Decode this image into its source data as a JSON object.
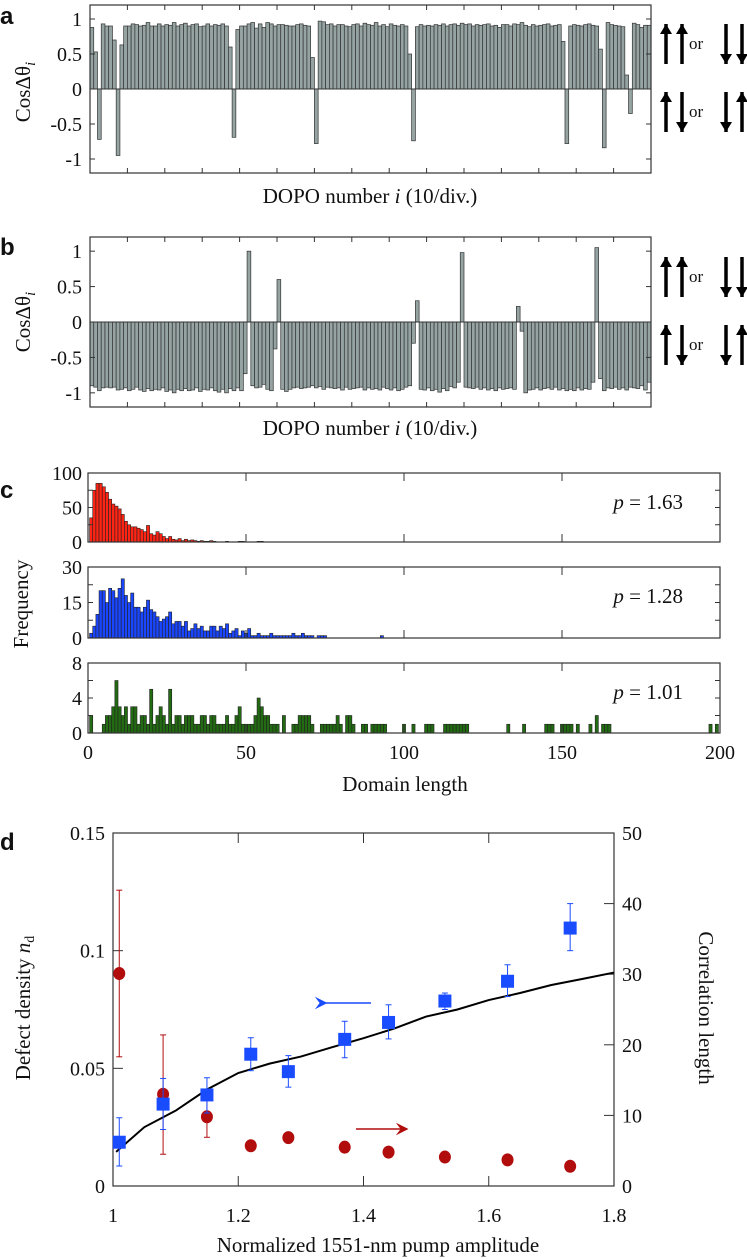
{
  "chart_data": [
    {
      "panel": "a",
      "type": "bar",
      "ylabel": "CosΔθ",
      "ylabel_sub": "i",
      "xlabel_pre": "DOPO number ",
      "xlabel_var": "i",
      "xlabel_post": " (10/div.)",
      "ylim": [
        -1.2,
        1.2
      ],
      "yticks": [
        1,
        0.5,
        0,
        -0.5,
        -1
      ],
      "ytick_labels": [
        "1",
        "0.5",
        "0",
        "-0.5",
        "-1"
      ],
      "side_labels": {
        "upper_or": "or",
        "lower_or": "or"
      },
      "bar_color": "#95a3a3",
      "values": [
        0.88,
        0.53,
        -0.72,
        0.93,
        0.9,
        0.9,
        0.7,
        -0.95,
        0.63,
        0.9,
        0.9,
        0.93,
        0.92,
        0.9,
        0.91,
        0.95,
        0.9,
        0.9,
        0.93,
        0.9,
        0.92,
        0.91,
        0.95,
        0.9,
        0.92,
        0.94,
        0.9,
        0.92,
        0.93,
        0.89,
        0.9,
        0.93,
        0.9,
        0.92,
        0.91,
        0.93,
        0.9,
        0.6,
        -0.69,
        0.85,
        0.9,
        0.9,
        0.93,
        0.95,
        0.87,
        0.93,
        0.88,
        0.95,
        0.93,
        0.9,
        0.92,
        0.92,
        0.91,
        0.9,
        0.9,
        0.92,
        0.93,
        0.91,
        0.9,
        0.45,
        -0.78,
        0.97,
        0.96,
        0.92,
        0.93,
        0.9,
        0.92,
        0.92,
        0.9,
        0.89,
        0.92,
        0.93,
        0.9,
        0.94,
        0.92,
        0.91,
        0.95,
        0.9,
        0.92,
        0.89,
        0.93,
        0.91,
        0.9,
        0.92,
        0.9,
        0.5,
        -0.74,
        0.89,
        0.92,
        0.9,
        0.91,
        0.9,
        0.92,
        0.91,
        0.93,
        0.9,
        0.92,
        0.93,
        0.91,
        0.94,
        0.92,
        0.93,
        0.9,
        0.92,
        0.91,
        0.92,
        0.93,
        0.9,
        0.91,
        0.88,
        0.92,
        0.92,
        0.9,
        0.93,
        0.92,
        0.95,
        0.91,
        0.89,
        0.92,
        0.9,
        0.91,
        0.92,
        0.93,
        0.9,
        0.91,
        0.92,
        0.68,
        -0.78,
        0.9,
        0.92,
        0.91,
        0.9,
        0.92,
        0.93,
        0.91,
        0.9,
        0.57,
        -0.84,
        0.95,
        0.92,
        0.91,
        0.9,
        0.89,
        0.2,
        -0.35,
        0.94,
        0.92,
        0.88,
        0.91,
        0.91
      ]
    },
    {
      "panel": "b",
      "type": "bar",
      "ylabel": "CosΔθ",
      "ylabel_sub": "i",
      "xlabel_pre": "DOPO number ",
      "xlabel_var": "i",
      "xlabel_post": " (10/div.)",
      "ylim": [
        -1.2,
        1.2
      ],
      "yticks": [
        1,
        0.5,
        0,
        -0.5,
        -1
      ],
      "ytick_labels": [
        "1",
        "0.5",
        "0",
        "-0.5",
        "-1"
      ],
      "side_labels": {
        "upper_or": "or",
        "lower_or": "or"
      },
      "bar_color": "#95a3a3",
      "values": [
        -0.9,
        -0.92,
        -0.97,
        -0.93,
        -0.92,
        -0.93,
        -0.92,
        -0.96,
        -0.95,
        -0.93,
        -0.97,
        -0.95,
        -0.92,
        -0.96,
        -0.98,
        -0.94,
        -0.97,
        -0.95,
        -0.96,
        -0.93,
        -0.98,
        -0.96,
        -1.0,
        -0.95,
        -0.97,
        -0.94,
        -0.97,
        -0.96,
        -0.93,
        -0.98,
        -0.95,
        -0.96,
        -0.93,
        -0.97,
        -0.99,
        -0.95,
        -1.0,
        -0.94,
        -0.97,
        -0.93,
        -0.97,
        -0.73,
        1.0,
        -0.9,
        -0.93,
        -0.92,
        -0.88,
        -0.95,
        -0.97,
        -0.38,
        0.6,
        -0.95,
        -0.98,
        -0.95,
        -0.93,
        -0.92,
        -0.94,
        -0.93,
        -0.92,
        -0.9,
        -0.93,
        -0.91,
        -0.95,
        -0.92,
        -0.93,
        -0.94,
        -0.93,
        -0.96,
        -0.92,
        -0.95,
        -0.94,
        -0.93,
        -0.92,
        -0.96,
        -0.93,
        -0.95,
        -0.94,
        -0.96,
        -0.92,
        -0.94,
        -0.96,
        -0.93,
        -0.97,
        -0.95,
        -0.92,
        -0.9,
        -0.3,
        0.3,
        -0.95,
        -0.96,
        -0.93,
        -0.97,
        -0.95,
        -0.99,
        -0.94,
        -0.97,
        -0.91,
        -0.93,
        -0.85,
        0.98,
        -0.92,
        -0.93,
        -0.94,
        -0.92,
        -0.95,
        -0.93,
        -0.96,
        -0.94,
        -0.97,
        -0.93,
        -0.95,
        -0.94,
        -0.93,
        -0.95,
        0.22,
        -0.13,
        -1.0,
        -0.96,
        -0.95,
        -0.93,
        -0.96,
        -0.94,
        -0.93,
        -0.95,
        -0.92,
        -0.96,
        -0.94,
        -0.97,
        -0.95,
        -0.97,
        -0.93,
        -0.96,
        -0.94,
        -0.95,
        -0.85,
        1.05,
        -0.8,
        -0.97,
        -0.93,
        -0.94,
        -0.92,
        -0.95,
        -0.93,
        -0.96,
        -0.92,
        -0.93,
        -0.94,
        -0.9,
        -0.96,
        -0.85
      ]
    },
    {
      "panel": "c",
      "type": "bar",
      "ylabel": "Frequency",
      "xlabel": "Domain length",
      "xlim": [
        0,
        200
      ],
      "xticks": [
        0,
        50,
        100,
        150,
        200
      ],
      "xtick_labels": [
        "0",
        "50",
        "100",
        "150",
        "200"
      ],
      "histograms": [
        {
          "label_var": "p",
          "label_rest": " = 1.63",
          "color": "#ff2414",
          "ylim": [
            0,
            100
          ],
          "yticks": [
            0,
            50,
            100
          ],
          "ytick_labels": [
            "0",
            "50",
            "100"
          ],
          "values": [
            35,
            75,
            85,
            85,
            80,
            72,
            62,
            55,
            52,
            48,
            40,
            30,
            25,
            22,
            22,
            20,
            18,
            15,
            24,
            12,
            10,
            15,
            12,
            8,
            5,
            8,
            4,
            3,
            5,
            2,
            4,
            2,
            3,
            2,
            1,
            2,
            1,
            1,
            2,
            1,
            0,
            0,
            0,
            1,
            0,
            0,
            0,
            1,
            1,
            0,
            0,
            0,
            0,
            1,
            1
          ]
        },
        {
          "label_var": "p",
          "label_rest": " = 1.28",
          "color": "#1a46ff",
          "ylim": [
            0,
            30
          ],
          "yticks": [
            0,
            15,
            30
          ],
          "ytick_labels": [
            "0",
            "15",
            "30"
          ],
          "values": [
            2,
            5,
            10,
            20,
            20,
            15,
            21,
            20,
            17,
            21,
            25,
            18,
            15,
            19,
            13,
            13,
            11,
            13,
            16,
            12,
            11,
            9,
            7,
            8,
            9,
            11,
            6,
            7,
            7,
            5,
            7,
            3,
            4,
            6,
            4,
            5,
            3,
            3,
            5,
            5,
            3,
            5,
            4,
            6,
            2,
            3,
            4,
            1,
            3,
            2,
            4,
            1,
            1,
            2,
            1,
            1,
            1,
            2,
            1,
            1,
            1,
            1,
            1,
            1,
            2,
            1,
            1,
            2,
            1,
            1,
            1,
            0,
            1,
            1,
            1,
            0,
            0,
            0,
            0,
            0,
            0,
            0,
            0,
            0,
            0,
            0,
            0,
            0,
            0,
            0,
            0,
            0,
            1
          ]
        },
        {
          "label_var": "p",
          "label_rest": " = 1.01",
          "color": "#226b12",
          "ylim": [
            0,
            8
          ],
          "yticks": [
            0,
            4,
            8
          ],
          "ytick_labels": [
            "0",
            "4",
            "8"
          ],
          "values": [
            2,
            0,
            0,
            0,
            1,
            2,
            2,
            3,
            6,
            3,
            2,
            3,
            1,
            3,
            3,
            1,
            2,
            2,
            1,
            5,
            1,
            2,
            3,
            2,
            1,
            5,
            1,
            2,
            2,
            1,
            2,
            2,
            2,
            1,
            1,
            2,
            2,
            1,
            2,
            2,
            1,
            1,
            1,
            2,
            1,
            1,
            2,
            3,
            1,
            1,
            1,
            1,
            2,
            4,
            3,
            2,
            2,
            1,
            1,
            1,
            0,
            2,
            0,
            0,
            1,
            1,
            2,
            2,
            2,
            2,
            1,
            0,
            0,
            1,
            1,
            1,
            1,
            1,
            2,
            1,
            0,
            2,
            2,
            1,
            0,
            0,
            1,
            1,
            0,
            1,
            1,
            1,
            1,
            1,
            0,
            0,
            0,
            0,
            0,
            1,
            0,
            0,
            1,
            0,
            0,
            0,
            1,
            1,
            1,
            0,
            0,
            0,
            1,
            1,
            1,
            1,
            1,
            1,
            1,
            1,
            0,
            0,
            0,
            0,
            0,
            0,
            0,
            0,
            0,
            0,
            0,
            0,
            1,
            0,
            0,
            0,
            0,
            1,
            0,
            0,
            0,
            0,
            0,
            0,
            1,
            1,
            1,
            0,
            0,
            1,
            1,
            1,
            1,
            0,
            1,
            0,
            0,
            0,
            1,
            0,
            2,
            0,
            1,
            1,
            1,
            0,
            0,
            0,
            0,
            0,
            0,
            0,
            0,
            0,
            0,
            0,
            0,
            0,
            0,
            0,
            0,
            0,
            0,
            0,
            0,
            0,
            0,
            0,
            0,
            0,
            0,
            0,
            0,
            0,
            0,
            0,
            1,
            0,
            1,
            0
          ]
        }
      ]
    },
    {
      "panel": "d",
      "type": "scatter",
      "xlabel": "Normalized 1551-nm pump amplitude",
      "ylabel_left": "Defect density ",
      "ylabel_left_var": "n",
      "ylabel_left_sub": "d",
      "ylabel_right": "Correlation length",
      "xlim": [
        1,
        1.8
      ],
      "ylim_left": [
        0,
        0.15
      ],
      "ylim_right": [
        0,
        50
      ],
      "xticks": [
        1,
        1.2,
        1.4,
        1.6,
        1.8
      ],
      "xtick_labels": [
        "1",
        "1.2",
        "1.4",
        "1.6",
        "1.8"
      ],
      "yticks_left": [
        0,
        0.05,
        0.1,
        0.15
      ],
      "ytick_labels_left": [
        "0",
        "0.05",
        "0.1",
        "0.15"
      ],
      "yticks_right": [
        0,
        10,
        20,
        30,
        40,
        50
      ],
      "ytick_labels_right": [
        "0",
        "10",
        "20",
        "30",
        "40",
        "50"
      ],
      "series": [
        {
          "axis": "left",
          "marker": "square",
          "color": "#1a4cff",
          "x": [
            1.01,
            1.08,
            1.15,
            1.22,
            1.28,
            1.37,
            1.44,
            1.53,
            1.63,
            1.73
          ],
          "y": [
            0.0186,
            0.0348,
            0.0387,
            0.056,
            0.0486,
            0.0623,
            0.0695,
            0.0786,
            0.087,
            0.1096
          ],
          "err_low": [
            0.0085,
            0.024,
            0.031,
            0.049,
            0.042,
            0.0545,
            0.0625,
            0.075,
            0.0805,
            0.1
          ],
          "err_high": [
            0.029,
            0.0457,
            0.046,
            0.063,
            0.0554,
            0.07,
            0.077,
            0.082,
            0.094,
            0.12
          ]
        },
        {
          "axis": "right",
          "marker": "circle",
          "color": "#b20d0d",
          "x": [
            1.01,
            1.08,
            1.15,
            1.22,
            1.28,
            1.37,
            1.44,
            1.53,
            1.63,
            1.73
          ],
          "y": [
            30.1,
            13.0,
            9.8,
            5.7,
            6.85,
            5.5,
            4.8,
            4.1,
            3.7,
            2.8
          ],
          "err_low": [
            18.3,
            4.5,
            6.9,
            5.2,
            6.3,
            5.0,
            4.8,
            4.1,
            3.7,
            2.8
          ],
          "err_high": [
            41.9,
            21.4,
            12.7,
            6.2,
            7.4,
            6.0,
            4.8,
            4.1,
            3.7,
            2.8
          ]
        },
        {
          "axis": "left",
          "marker": "line",
          "color": "#000000",
          "x": [
            1.005,
            1.05,
            1.1,
            1.15,
            1.2,
            1.25,
            1.3,
            1.35,
            1.4,
            1.45,
            1.5,
            1.55,
            1.6,
            1.65,
            1.7,
            1.75,
            1.8
          ],
          "y": [
            0.0145,
            0.025,
            0.032,
            0.041,
            0.048,
            0.052,
            0.055,
            0.059,
            0.0628,
            0.067,
            0.072,
            0.075,
            0.079,
            0.082,
            0.0854,
            0.088,
            0.0907
          ]
        }
      ]
    }
  ],
  "panel_letters": [
    "a",
    "b",
    "c",
    "d"
  ]
}
